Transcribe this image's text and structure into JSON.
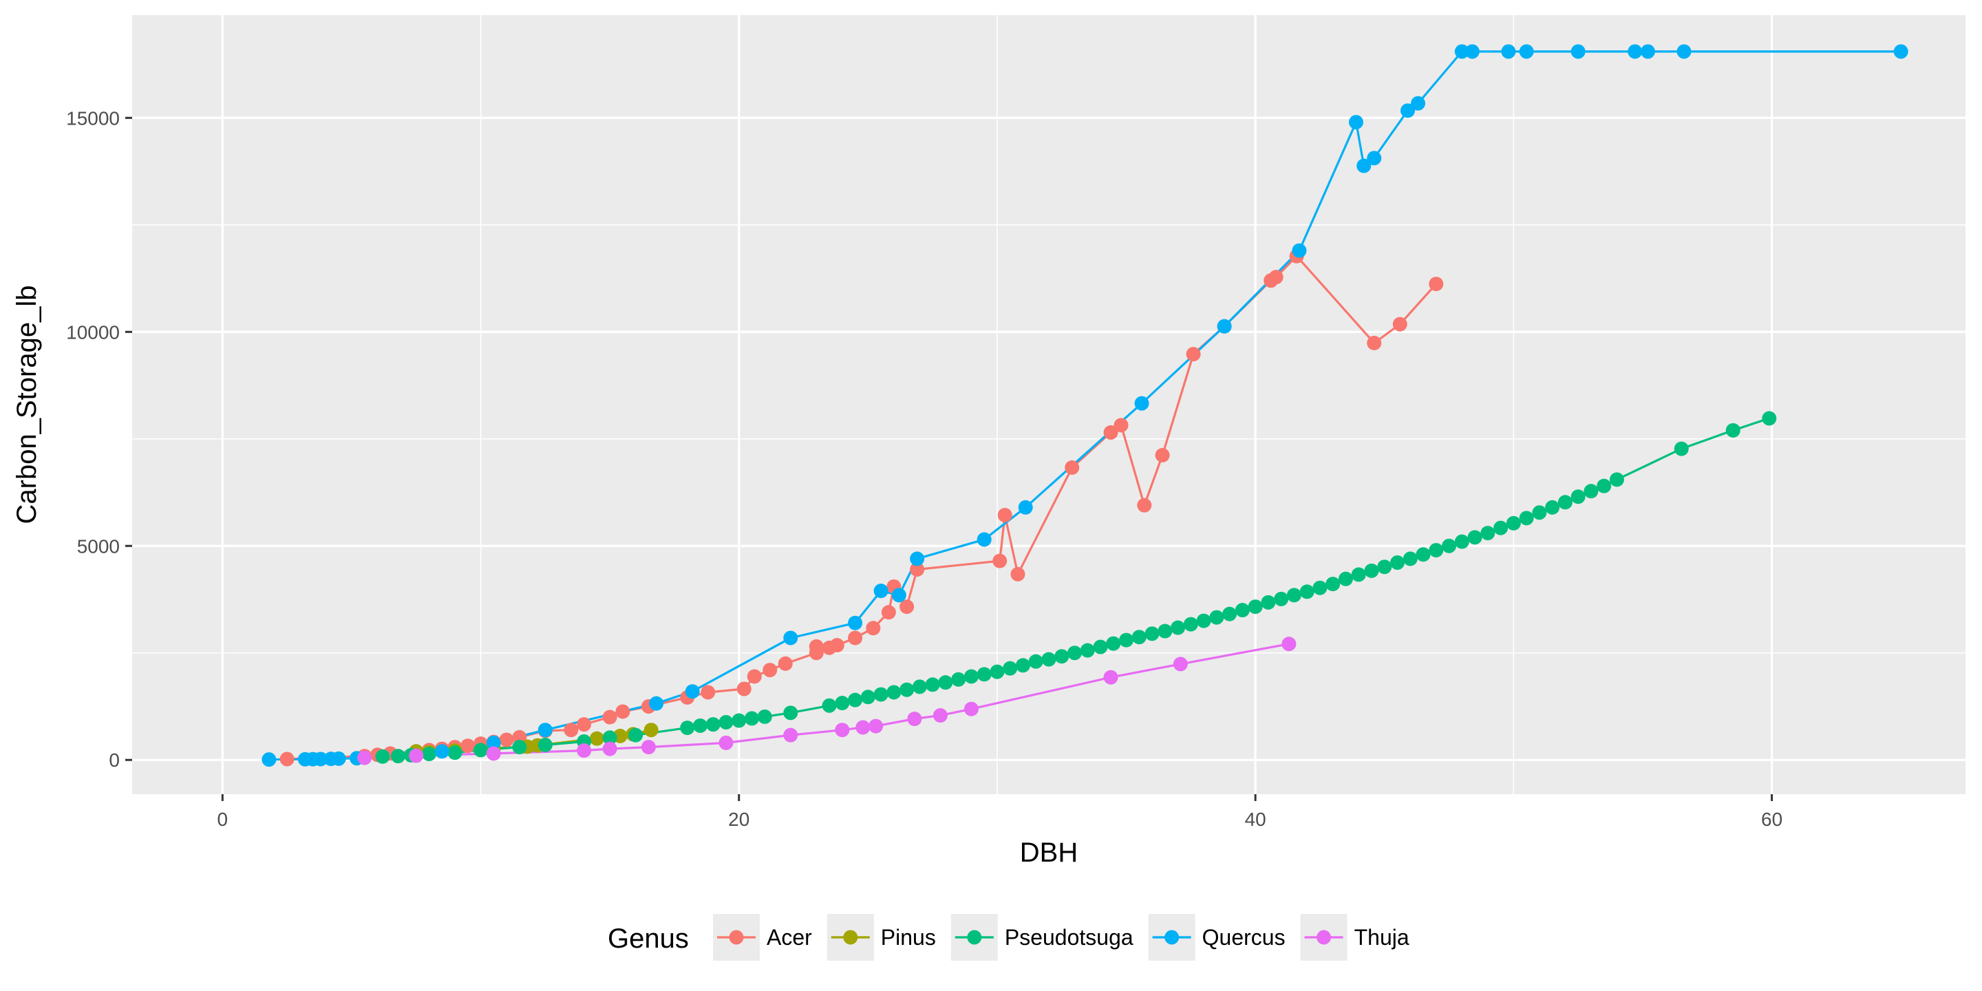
{
  "chart_data": {
    "type": "line",
    "title": "",
    "xlabel": "DBH",
    "ylabel": "Carbon_Storage_lb",
    "xlim": [
      -3.5,
      67.5
    ],
    "ylim": [
      -800,
      17400
    ],
    "xticks": [
      0,
      20,
      40,
      60
    ],
    "xtick_labels": [
      "0",
      "20",
      "40",
      "60"
    ],
    "yticks": [
      0,
      5000,
      10000,
      15000
    ],
    "ytick_labels": [
      "0",
      "5000",
      "10000",
      "15000"
    ],
    "grid": true,
    "legend_position": "bottom",
    "legend_title": "Genus",
    "series": [
      {
        "name": "Acer",
        "color": "#F8766D",
        "points": [
          [
            2.5,
            20
          ],
          [
            5.5,
            90
          ],
          [
            6,
            120
          ],
          [
            6.5,
            150
          ],
          [
            7.5,
            200
          ],
          [
            8,
            230
          ],
          [
            8.5,
            260
          ],
          [
            9,
            300
          ],
          [
            9.5,
            330
          ],
          [
            10,
            380
          ],
          [
            10.5,
            420
          ],
          [
            11,
            470
          ],
          [
            11.5,
            530
          ],
          [
            12.5,
            680
          ],
          [
            13.5,
            700
          ],
          [
            14,
            830
          ],
          [
            15,
            1000
          ],
          [
            15.5,
            1130
          ],
          [
            16.5,
            1250
          ],
          [
            18,
            1460
          ],
          [
            18.8,
            1580
          ],
          [
            20.2,
            1660
          ],
          [
            20.6,
            1950
          ],
          [
            21.2,
            2100
          ],
          [
            21.8,
            2250
          ],
          [
            23,
            2500
          ],
          [
            23,
            2650
          ],
          [
            23.5,
            2620
          ],
          [
            23.8,
            2680
          ],
          [
            24.5,
            2850
          ],
          [
            25.2,
            3080
          ],
          [
            25.8,
            3450
          ],
          [
            26,
            4050
          ],
          [
            26.5,
            3580
          ],
          [
            26.9,
            4450
          ],
          [
            30.1,
            4650
          ],
          [
            30.3,
            5720
          ],
          [
            30.8,
            4340
          ],
          [
            32.9,
            6830
          ],
          [
            34.4,
            7650
          ],
          [
            34.8,
            7820
          ],
          [
            35.7,
            5950
          ],
          [
            36.4,
            7120
          ],
          [
            37.6,
            9480
          ],
          [
            38.8,
            10130
          ],
          [
            40.6,
            11200
          ],
          [
            40.8,
            11280
          ],
          [
            41.6,
            11770
          ],
          [
            44.6,
            9740
          ],
          [
            45.6,
            10180
          ],
          [
            47.0,
            11120
          ]
        ]
      },
      {
        "name": "Pinus",
        "color": "#A3A500",
        "points": [
          [
            7.5,
            200
          ],
          [
            8,
            180
          ],
          [
            9,
            220
          ],
          [
            10.5,
            280
          ],
          [
            11.8,
            310
          ],
          [
            12.2,
            340
          ],
          [
            14.5,
            500
          ],
          [
            15,
            520
          ],
          [
            15.4,
            560
          ],
          [
            15.9,
            600
          ],
          [
            16.6,
            700
          ]
        ]
      },
      {
        "name": "Pseudotsuga",
        "color": "#00BF7D",
        "points": [
          [
            6.2,
            80
          ],
          [
            6.8,
            90
          ],
          [
            7.3,
            110
          ],
          [
            8,
            140
          ],
          [
            9,
            170
          ],
          [
            10,
            230
          ],
          [
            11.5,
            300
          ],
          [
            12.5,
            350
          ],
          [
            14,
            430
          ],
          [
            15,
            520
          ],
          [
            16,
            580
          ],
          [
            18,
            750
          ],
          [
            18.5,
            800
          ],
          [
            19,
            830
          ],
          [
            19.5,
            880
          ],
          [
            20,
            920
          ],
          [
            20.5,
            970
          ],
          [
            21,
            1010
          ],
          [
            22,
            1100
          ],
          [
            23.5,
            1270
          ],
          [
            24,
            1330
          ],
          [
            24.5,
            1400
          ],
          [
            25,
            1470
          ],
          [
            25.5,
            1530
          ],
          [
            26,
            1580
          ],
          [
            26.5,
            1640
          ],
          [
            27,
            1710
          ],
          [
            27.5,
            1760
          ],
          [
            28,
            1810
          ],
          [
            28.5,
            1880
          ],
          [
            29,
            1950
          ],
          [
            29.5,
            2000
          ],
          [
            30,
            2060
          ],
          [
            30.5,
            2140
          ],
          [
            31,
            2210
          ],
          [
            31.5,
            2300
          ],
          [
            32,
            2350
          ],
          [
            32.5,
            2420
          ],
          [
            33,
            2500
          ],
          [
            33.5,
            2560
          ],
          [
            34,
            2640
          ],
          [
            34.5,
            2720
          ],
          [
            35,
            2800
          ],
          [
            35.5,
            2870
          ],
          [
            36,
            2950
          ],
          [
            36.5,
            3010
          ],
          [
            37,
            3090
          ],
          [
            37.5,
            3170
          ],
          [
            38,
            3250
          ],
          [
            38.5,
            3330
          ],
          [
            39,
            3410
          ],
          [
            39.5,
            3500
          ],
          [
            40,
            3580
          ],
          [
            40.5,
            3680
          ],
          [
            41,
            3760
          ],
          [
            41.5,
            3850
          ],
          [
            42,
            3930
          ],
          [
            42.5,
            4020
          ],
          [
            43,
            4110
          ],
          [
            43.5,
            4230
          ],
          [
            44,
            4330
          ],
          [
            44.5,
            4420
          ],
          [
            45,
            4510
          ],
          [
            45.5,
            4610
          ],
          [
            46,
            4700
          ],
          [
            46.5,
            4800
          ],
          [
            47,
            4900
          ],
          [
            47.5,
            5000
          ],
          [
            48,
            5100
          ],
          [
            48.5,
            5200
          ],
          [
            49,
            5300
          ],
          [
            49.5,
            5420
          ],
          [
            50,
            5530
          ],
          [
            50.5,
            5650
          ],
          [
            51,
            5780
          ],
          [
            51.5,
            5900
          ],
          [
            52,
            6020
          ],
          [
            52.5,
            6150
          ],
          [
            53,
            6280
          ],
          [
            53.5,
            6400
          ],
          [
            54,
            6550
          ],
          [
            56.5,
            7270
          ],
          [
            58.5,
            7700
          ],
          [
            59.9,
            7980
          ]
        ]
      },
      {
        "name": "Quercus",
        "color": "#00B0F6",
        "points": [
          [
            1.8,
            10
          ],
          [
            3.2,
            15
          ],
          [
            3.5,
            18
          ],
          [
            3.8,
            20
          ],
          [
            4.2,
            25
          ],
          [
            4.5,
            30
          ],
          [
            5.2,
            40
          ],
          [
            8.5,
            200
          ],
          [
            10.5,
            400
          ],
          [
            12.5,
            700
          ],
          [
            16.8,
            1320
          ],
          [
            18.2,
            1600
          ],
          [
            22,
            2850
          ],
          [
            24.5,
            3200
          ],
          [
            25.5,
            3950
          ],
          [
            26.2,
            3850
          ],
          [
            26.9,
            4700
          ],
          [
            29.5,
            5150
          ],
          [
            31.1,
            5900
          ],
          [
            35.6,
            8330
          ],
          [
            38.8,
            10130
          ],
          [
            41.7,
            11900
          ],
          [
            43.9,
            14900
          ],
          [
            44.2,
            13880
          ],
          [
            44.6,
            14060
          ],
          [
            45.9,
            15170
          ],
          [
            46.3,
            15340
          ],
          [
            48.0,
            16550
          ],
          [
            48.4,
            16550
          ],
          [
            49.8,
            16550
          ],
          [
            50.5,
            16550
          ],
          [
            52.5,
            16550
          ],
          [
            54.7,
            16550
          ],
          [
            55.2,
            16550
          ],
          [
            56.6,
            16550
          ],
          [
            65.0,
            16550
          ]
        ]
      },
      {
        "name": "Thuja",
        "color": "#E76BF3",
        "points": [
          [
            5.5,
            50
          ],
          [
            7.5,
            100
          ],
          [
            10.5,
            150
          ],
          [
            14.0,
            220
          ],
          [
            15.0,
            260
          ],
          [
            16.5,
            300
          ],
          [
            19.5,
            400
          ],
          [
            22.0,
            580
          ],
          [
            24.0,
            700
          ],
          [
            24.8,
            760
          ],
          [
            25.3,
            790
          ],
          [
            26.8,
            960
          ],
          [
            27.8,
            1040
          ],
          [
            29.0,
            1190
          ],
          [
            34.4,
            1930
          ],
          [
            37.1,
            2240
          ],
          [
            41.3,
            2710
          ]
        ]
      }
    ]
  }
}
